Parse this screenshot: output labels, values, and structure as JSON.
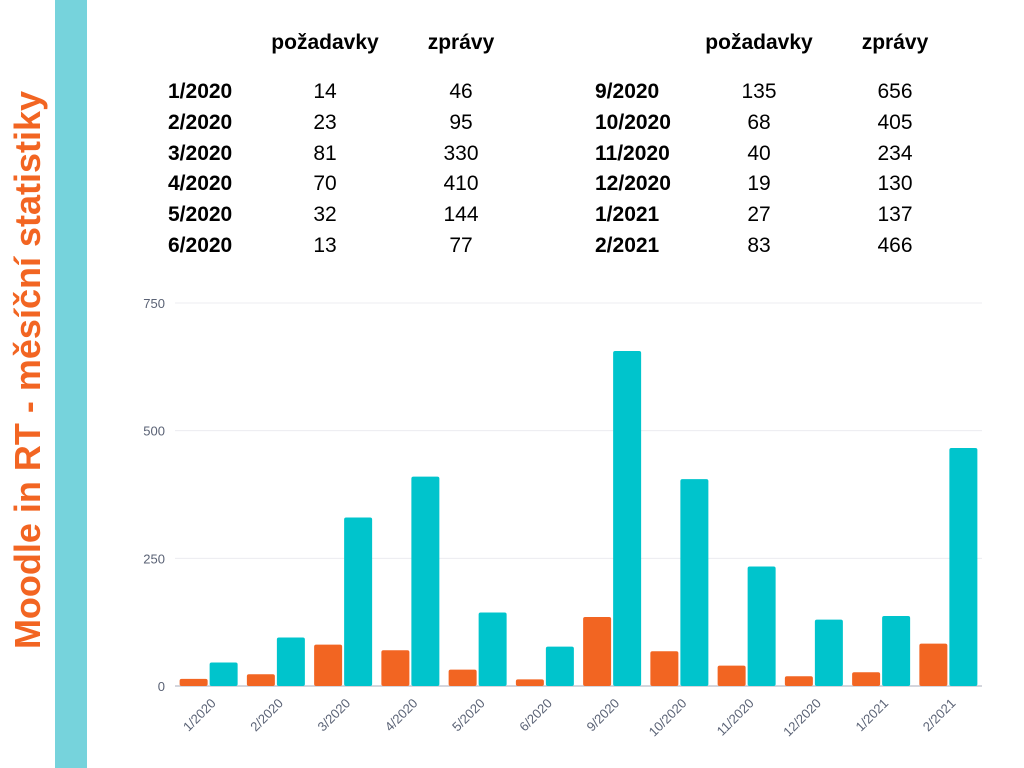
{
  "title": "Moodle in RT - měsíční statistiky",
  "table": {
    "headers": [
      "požadavky",
      "zprávy"
    ],
    "left": [
      {
        "month": "1/2020",
        "pozadavky": "14",
        "zpravy": "46"
      },
      {
        "month": "2/2020",
        "pozadavky": "23",
        "zpravy": "95"
      },
      {
        "month": "3/2020",
        "pozadavky": "81",
        "zpravy": "330"
      },
      {
        "month": "4/2020",
        "pozadavky": "70",
        "zpravy": "410"
      },
      {
        "month": "5/2020",
        "pozadavky": "32",
        "zpravy": "144"
      },
      {
        "month": "6/2020",
        "pozadavky": "13",
        "zpravy": "77"
      }
    ],
    "right": [
      {
        "month": "9/2020",
        "pozadavky": "135",
        "zpravy": "656"
      },
      {
        "month": "10/2020",
        "pozadavky": "68",
        "zpravy": "405"
      },
      {
        "month": "11/2020",
        "pozadavky": "40",
        "zpravy": "234"
      },
      {
        "month": "12/2020",
        "pozadavky": "19",
        "zpravy": "130"
      },
      {
        "month": "1/2021",
        "pozadavky": "27",
        "zpravy": "137"
      },
      {
        "month": "2/2021",
        "pozadavky": "83",
        "zpravy": "466"
      }
    ]
  },
  "chart_data": {
    "type": "bar",
    "categories": [
      "1/2020",
      "2/2020",
      "3/2020",
      "4/2020",
      "5/2020",
      "6/2020",
      "9/2020",
      "10/2020",
      "11/2020",
      "12/2020",
      "1/2021",
      "2/2021"
    ],
    "series": [
      {
        "name": "požadavky",
        "color": "#f26522",
        "values": [
          14,
          23,
          81,
          70,
          32,
          13,
          135,
          68,
          40,
          19,
          27,
          83
        ]
      },
      {
        "name": "zprávy",
        "color": "#00c4cc",
        "values": [
          46,
          95,
          330,
          410,
          144,
          77,
          656,
          405,
          234,
          130,
          137,
          466
        ]
      }
    ],
    "yticks": [
      0,
      250,
      500,
      750
    ],
    "ylim": [
      0,
      750
    ],
    "grid": true,
    "xlabel": "",
    "ylabel": ""
  }
}
